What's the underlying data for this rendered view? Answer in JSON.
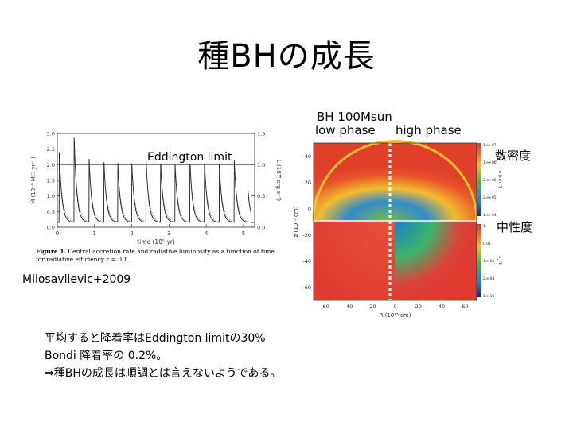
{
  "slide": {
    "title": "種BHの成長",
    "labels": {
      "bh_mass": "BH 100Msun",
      "low_phase": "low phase",
      "high_phase": "high phase",
      "eddington_limit": "Eddington limit",
      "number_density": "数密度",
      "neutral_fraction": "中性度",
      "citation": "Milosavlievic+2009"
    },
    "figure": {
      "caption_bold": "Figure 1.",
      "caption_line1": "Central accretion rate and radiative luminosity as a function of time",
      "caption_line2": "for radiative efficiency ε = 0.1.",
      "xlabel": "time (10⁵ yr)",
      "ylabel_left": "Ṁ (10⁻⁶ M☉ yr⁻¹)",
      "ylabel_right": "L (10³⁸ erg s⁻¹)",
      "xticks": [
        "0",
        "1",
        "2",
        "3",
        "4",
        "5"
      ],
      "yticks_left": [
        "0.0",
        "0.5",
        "1.0",
        "1.5",
        "2.0",
        "2.5",
        "3.0"
      ],
      "yticks_right": [
        "0.0",
        "0.5",
        "1.0",
        "1.5"
      ]
    },
    "sim_panel": {
      "xlabel": "R (10¹⁵ cm)",
      "ylabel": "z (10¹⁵ cm)",
      "xticks": [
        "-60",
        "-40",
        "-20",
        "0",
        "20",
        "40",
        "60"
      ],
      "yticks": [
        "40",
        "20",
        "0",
        "-20",
        "-40",
        "-60"
      ],
      "cbar_top": [
        "1.e+07",
        "1.e+06",
        "2.e+06",
        "2.e+05",
        "1.e+04"
      ],
      "cbar_bottom": [
        "1.",
        "0.01",
        "1.e-05",
        "2.e-08",
        "1.e-10"
      ],
      "cbar_top_label": "n (cm⁻³)",
      "cbar_bottom_label": "x_HI"
    },
    "body_text": [
      "平均すると降着率はEddington limitの30%",
      "Bondi 降着率の 0.2%。",
      "⇒種BHの成長は順調とは言えないようである。"
    ]
  },
  "chart_data": {
    "type": "line",
    "title": "",
    "xlabel": "time (10⁵ yr)",
    "ylabel": "Ṁ (10⁻⁶ M☉ yr⁻¹)",
    "xlim": [
      0,
      5.3
    ],
    "ylim": [
      0,
      3.0
    ],
    "y2label": "L (10³⁸ erg s⁻¹)",
    "y2lim": [
      0,
      1.5
    ],
    "eddington_limit_y": 2.0,
    "burst_times": [
      0.05,
      0.45,
      0.85,
      1.25,
      1.62,
      2.0,
      2.38,
      2.77,
      3.16,
      3.56,
      3.95,
      4.35,
      4.75,
      5.12
    ],
    "burst_peaks": [
      2.5,
      3.0,
      2.3,
      2.2,
      2.2,
      2.1,
      2.3,
      2.2,
      2.1,
      2.2,
      2.2,
      2.1,
      2.2,
      1.2
    ],
    "baseline": 0.15
  }
}
